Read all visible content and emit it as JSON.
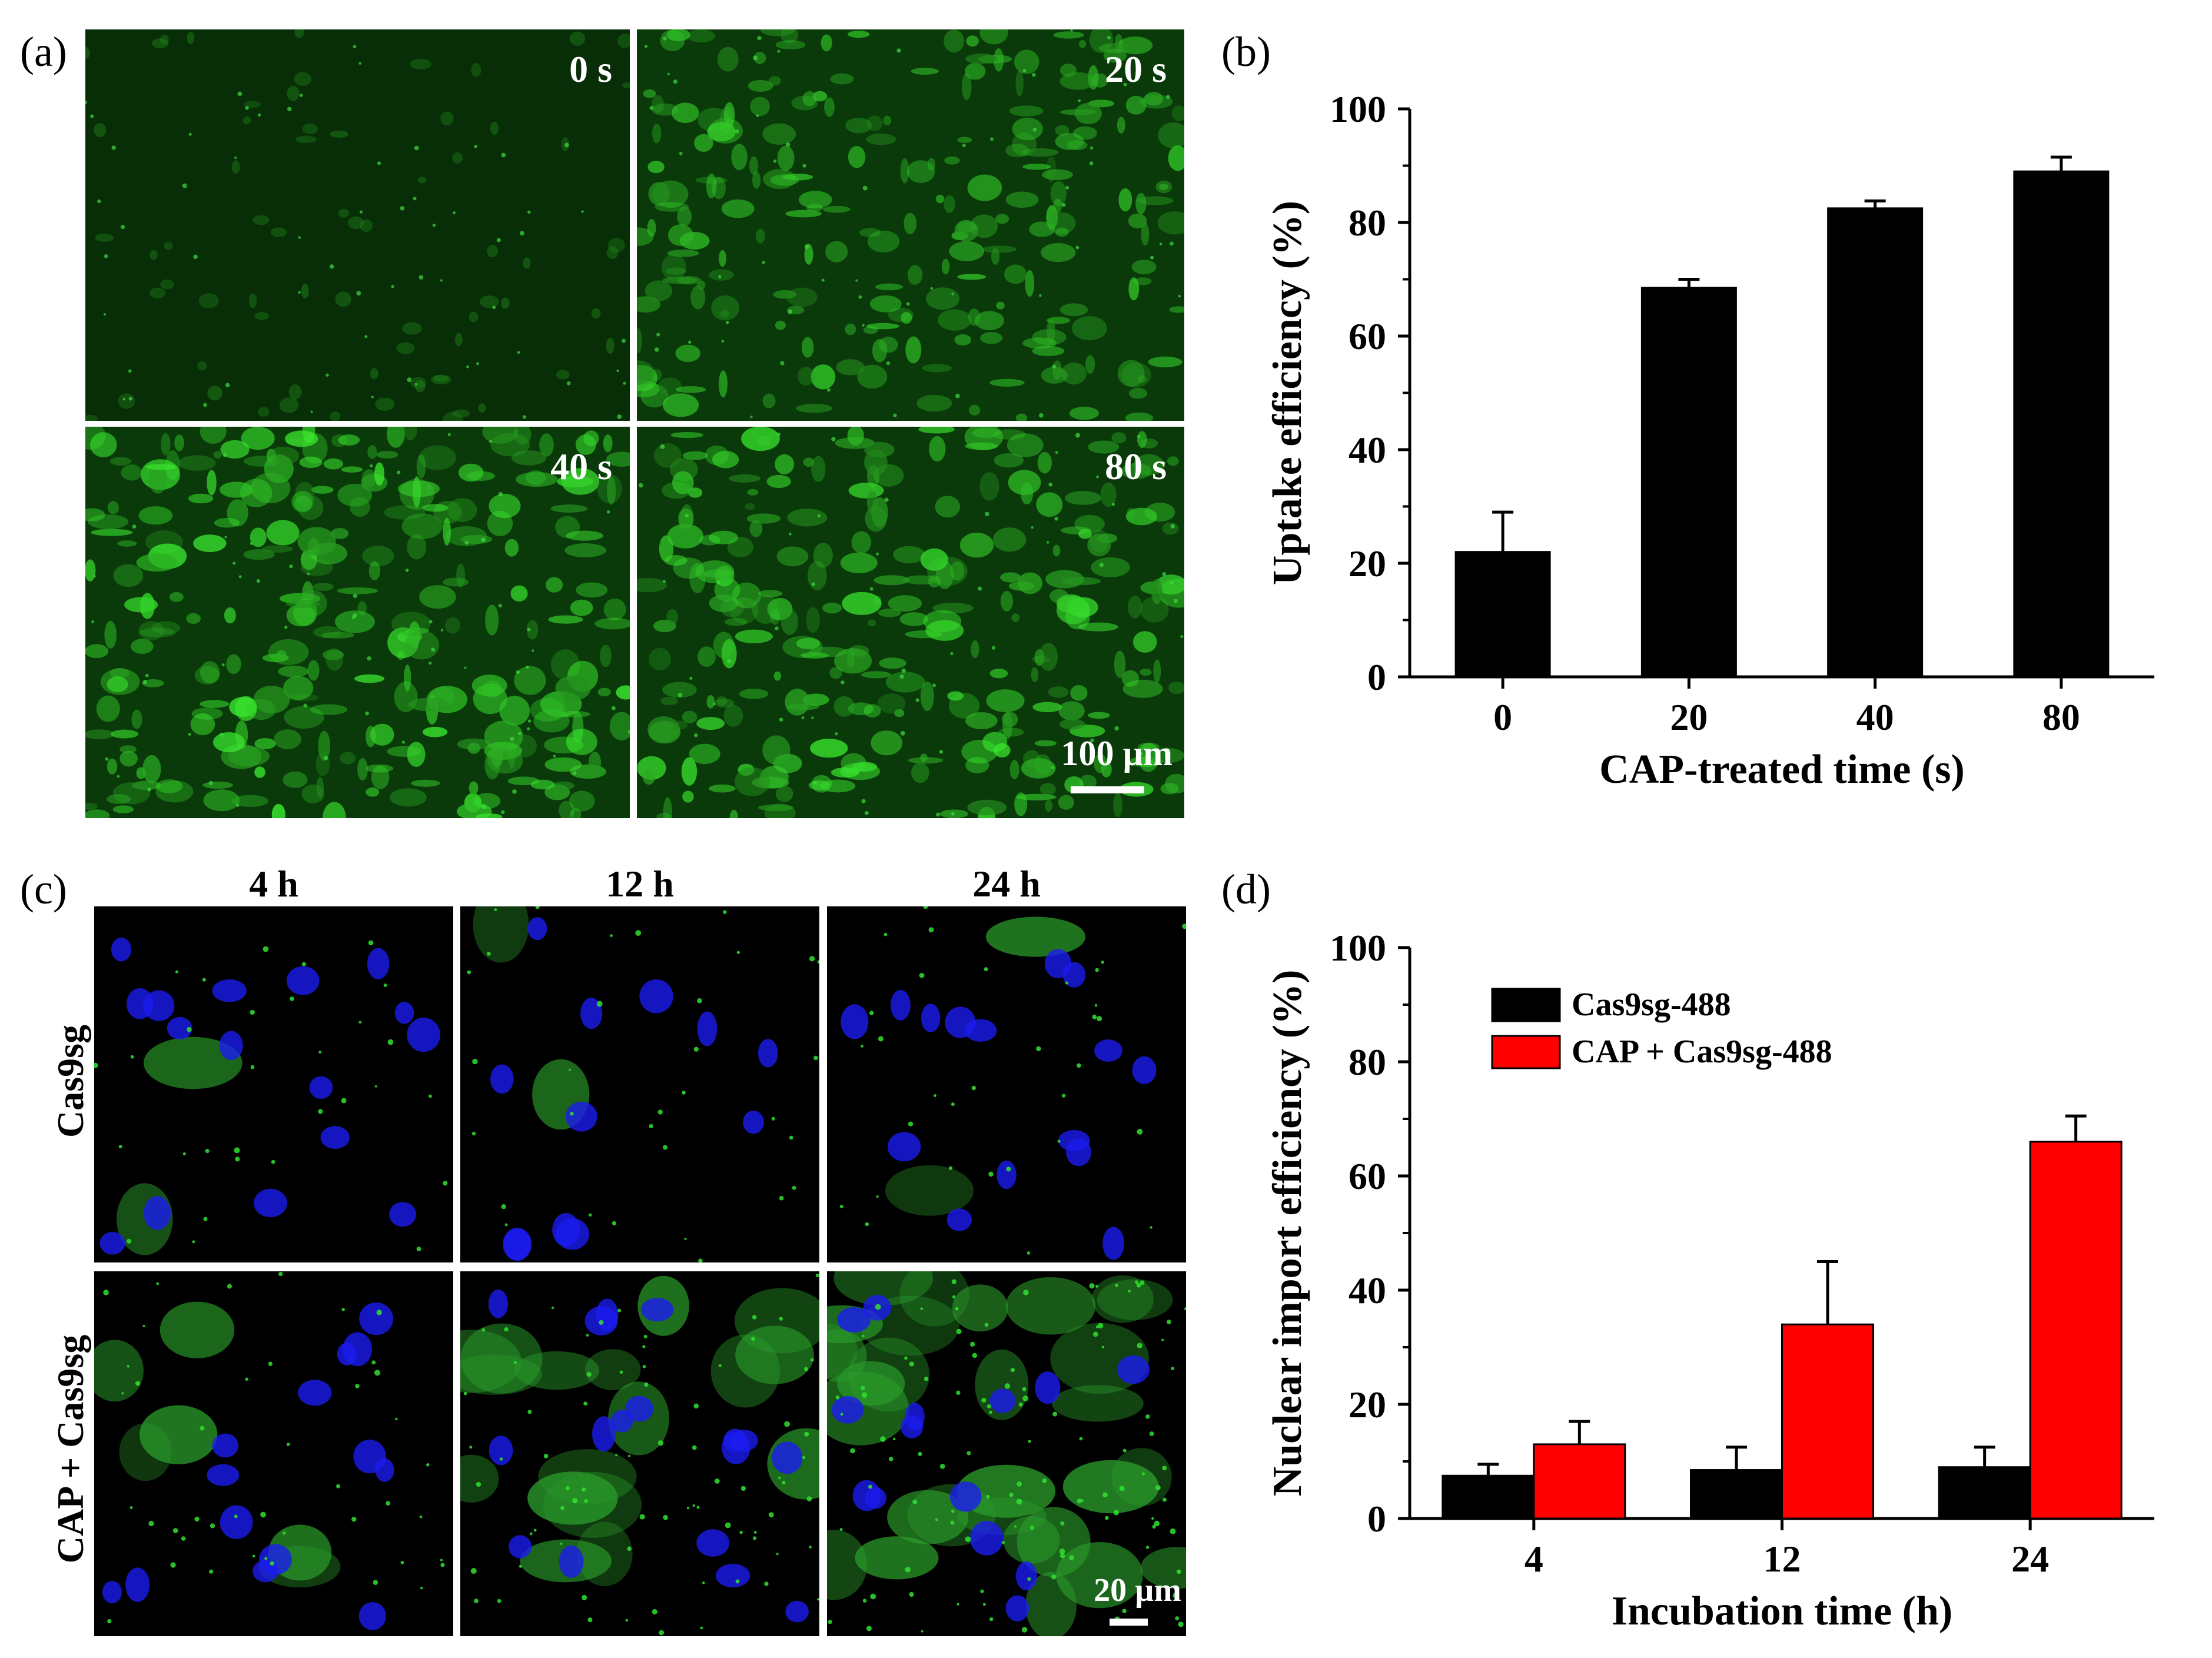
{
  "panels": {
    "a": {
      "label": "(a)",
      "tiles": [
        {
          "label": "0 s",
          "intensity": 0.15
        },
        {
          "label": "20 s",
          "intensity": 0.75
        },
        {
          "label": "40 s",
          "intensity": 0.95
        },
        {
          "label": "80 s",
          "intensity": 0.9
        }
      ],
      "scale_bar": "100 µm"
    },
    "b": {
      "label": "(b)"
    },
    "c": {
      "label": "(c)",
      "columns": [
        "4 h",
        "12 h",
        "24 h"
      ],
      "rows": [
        "Cas9sg",
        "CAP + Cas9sg"
      ],
      "scale_bar": "20 µm"
    },
    "d": {
      "label": "(d)"
    }
  },
  "colors": {
    "bar_black": "#000000",
    "bar_red": "#ff0000",
    "fluor_green": "#1fbf1f",
    "nucleus_blue": "#1a1aff",
    "background": "#000000"
  },
  "chart_data": [
    {
      "type": "bar",
      "panel": "b",
      "categories": [
        "0",
        "20",
        "40",
        "80"
      ],
      "series": [
        {
          "values": [
            22,
            68.5,
            82.5,
            89
          ],
          "errors": [
            7,
            1.5,
            1.3,
            2.5
          ],
          "color": "#000000"
        }
      ],
      "xlabel": "CAP-treated time (s)",
      "ylabel": "Uptake efficiency (%)",
      "ylim": [
        0,
        100
      ],
      "yticks": [
        "0",
        "20",
        "40",
        "60",
        "80",
        "100"
      ],
      "grid": false
    },
    {
      "type": "bar",
      "panel": "d",
      "categories": [
        "4",
        "12",
        "24"
      ],
      "series": [
        {
          "name": "Cas9sg-488",
          "values": [
            7.5,
            8.5,
            9
          ],
          "errors": [
            2,
            4,
            3.5
          ],
          "color": "#000000"
        },
        {
          "name": "CAP + Cas9sg-488",
          "values": [
            13,
            34,
            66
          ],
          "errors": [
            4,
            11,
            4.5
          ],
          "color": "#ff0000"
        }
      ],
      "xlabel": "Incubation time (h)",
      "ylabel": "Nuclear import efficiency  (%)",
      "ylim": [
        0,
        100
      ],
      "yticks": [
        "0",
        "20",
        "40",
        "60",
        "80",
        "100"
      ],
      "legend": "top-left",
      "grid": false
    }
  ]
}
